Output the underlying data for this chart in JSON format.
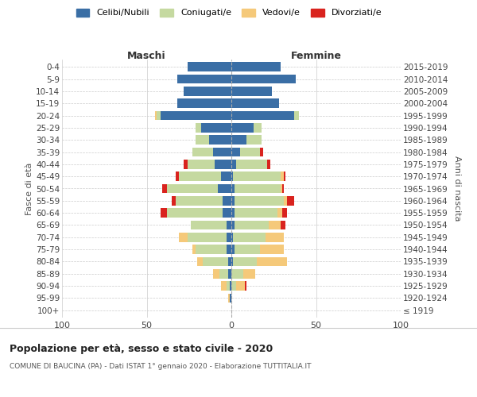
{
  "age_groups": [
    "100+",
    "95-99",
    "90-94",
    "85-89",
    "80-84",
    "75-79",
    "70-74",
    "65-69",
    "60-64",
    "55-59",
    "50-54",
    "45-49",
    "40-44",
    "35-39",
    "30-34",
    "25-29",
    "20-24",
    "15-19",
    "10-14",
    "5-9",
    "0-4"
  ],
  "birth_years": [
    "≤ 1919",
    "1920-1924",
    "1925-1929",
    "1930-1934",
    "1935-1939",
    "1940-1944",
    "1945-1949",
    "1950-1954",
    "1955-1959",
    "1960-1964",
    "1965-1969",
    "1970-1974",
    "1975-1979",
    "1980-1984",
    "1985-1989",
    "1990-1994",
    "1995-1999",
    "2000-2004",
    "2005-2009",
    "2010-2014",
    "2015-2019"
  ],
  "colors": {
    "celibi": "#3a6ea5",
    "coniugati": "#c5d9a0",
    "vedovi": "#f5c97a",
    "divorziati": "#d9231e"
  },
  "males": {
    "celibi": [
      0,
      1,
      1,
      2,
      2,
      3,
      3,
      3,
      5,
      5,
      8,
      6,
      10,
      11,
      13,
      18,
      42,
      32,
      28,
      32,
      26
    ],
    "coniugati": [
      0,
      0,
      2,
      5,
      15,
      18,
      23,
      21,
      33,
      28,
      30,
      25,
      16,
      12,
      8,
      3,
      2,
      0,
      0,
      0,
      0
    ],
    "vedovi": [
      0,
      1,
      3,
      4,
      3,
      2,
      5,
      0,
      0,
      0,
      0,
      0,
      0,
      0,
      0,
      0,
      1,
      0,
      0,
      0,
      0
    ],
    "divorziati": [
      0,
      0,
      0,
      0,
      0,
      0,
      0,
      0,
      4,
      2,
      3,
      2,
      2,
      0,
      0,
      0,
      0,
      0,
      0,
      0,
      0
    ]
  },
  "females": {
    "nubili": [
      0,
      0,
      0,
      0,
      1,
      2,
      1,
      2,
      2,
      2,
      2,
      1,
      3,
      5,
      9,
      13,
      37,
      28,
      24,
      38,
      29
    ],
    "coniugate": [
      0,
      0,
      3,
      7,
      14,
      15,
      19,
      20,
      25,
      29,
      27,
      28,
      18,
      12,
      9,
      5,
      3,
      0,
      0,
      0,
      0
    ],
    "vedove": [
      0,
      0,
      5,
      7,
      18,
      14,
      11,
      7,
      3,
      2,
      1,
      2,
      0,
      0,
      0,
      0,
      0,
      0,
      0,
      0,
      0
    ],
    "divorziate": [
      0,
      0,
      1,
      0,
      0,
      0,
      0,
      3,
      3,
      4,
      1,
      1,
      2,
      2,
      0,
      0,
      0,
      0,
      0,
      0,
      0
    ]
  },
  "xlim": 100,
  "title": "Popolazione per età, sesso e stato civile - 2020",
  "subtitle": "COMUNE DI BAUCINA (PA) - Dati ISTAT 1° gennaio 2020 - Elaborazione TUTTITALIA.IT",
  "ylabel_left": "Fasce di età",
  "ylabel_right": "Anni di nascita",
  "xlabel_left": "Maschi",
  "xlabel_right": "Femmine",
  "legend_labels": [
    "Celibi/Nubili",
    "Coniugati/e",
    "Vedovi/e",
    "Divorziati/e"
  ],
  "grid_color": "#cccccc"
}
